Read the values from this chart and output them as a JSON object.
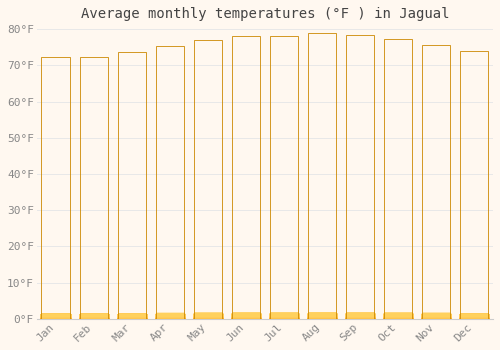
{
  "title": "Average monthly temperatures (°F ) in Jagual",
  "months": [
    "Jan",
    "Feb",
    "Mar",
    "Apr",
    "May",
    "Jun",
    "Jul",
    "Aug",
    "Sep",
    "Oct",
    "Nov",
    "Dec"
  ],
  "values": [
    72.3,
    72.3,
    73.8,
    75.2,
    77.0,
    78.1,
    78.1,
    78.8,
    78.4,
    77.2,
    75.7,
    73.9
  ],
  "bar_color_top": "#FFD060",
  "bar_color_bottom": "#FF9900",
  "bar_edge_color": "#CC8800",
  "background_color": "#FFF8F0",
  "plot_bg_color": "#FFF8F0",
  "grid_color": "#E8E8E8",
  "tick_label_color": "#888888",
  "title_color": "#444444",
  "ylim": [
    0,
    80
  ],
  "yticks": [
    0,
    10,
    20,
    30,
    40,
    50,
    60,
    70,
    80
  ],
  "ytick_labels": [
    "0°F",
    "10°F",
    "20°F",
    "30°F",
    "40°F",
    "50°F",
    "60°F",
    "70°F",
    "80°F"
  ],
  "title_fontsize": 10,
  "tick_fontsize": 8
}
